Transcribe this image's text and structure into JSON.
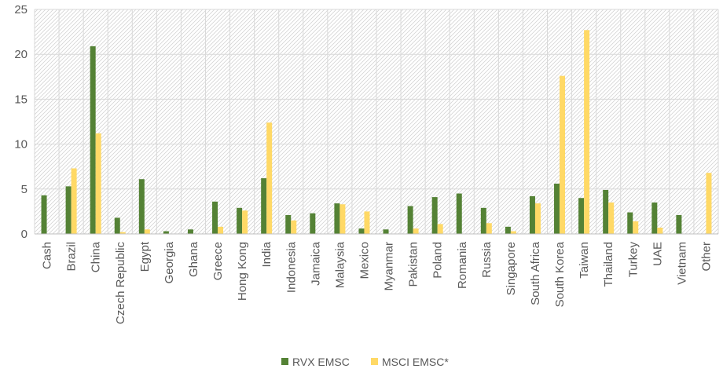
{
  "chart_data": {
    "type": "bar",
    "title": "",
    "xlabel": "",
    "ylabel": "",
    "ylim": [
      0,
      25
    ],
    "yticks": [
      0,
      5,
      10,
      15,
      20,
      25
    ],
    "grid": true,
    "legend_position": "bottom",
    "categories": [
      "Cash",
      "Brazil",
      "China",
      "Czech Republic",
      "Egypt",
      "Georgia",
      "Ghana",
      "Greece",
      "Hong Kong",
      "India",
      "Indonesia",
      "Jamaica",
      "Malaysia",
      "Mexico",
      "Myanmar",
      "Pakistan",
      "Poland",
      "Romania",
      "Russia",
      "Singapore",
      "South Africa",
      "South Korea",
      "Taiwan",
      "Thailand",
      "Turkey",
      "UAE",
      "Vietnam",
      "Other"
    ],
    "series": [
      {
        "name": "RVX EMSC",
        "color": "#548235",
        "values": [
          4.3,
          5.3,
          20.9,
          1.8,
          6.1,
          0.3,
          0.5,
          3.6,
          2.9,
          6.2,
          2.1,
          2.3,
          3.4,
          0.6,
          0.5,
          3.1,
          4.1,
          4.5,
          2.9,
          0.8,
          4.2,
          5.6,
          4.0,
          4.9,
          2.4,
          3.5,
          2.1,
          0
        ]
      },
      {
        "name": "MSCI EMSC*",
        "color": "#FFD966",
        "values": [
          0,
          7.3,
          11.2,
          0.2,
          0.5,
          0,
          0,
          0.8,
          2.6,
          12.4,
          1.5,
          0,
          3.3,
          2.5,
          0,
          0.6,
          1.1,
          0,
          1.2,
          0.3,
          3.4,
          17.6,
          22.7,
          3.5,
          1.4,
          0.7,
          0,
          6.8
        ]
      }
    ]
  }
}
